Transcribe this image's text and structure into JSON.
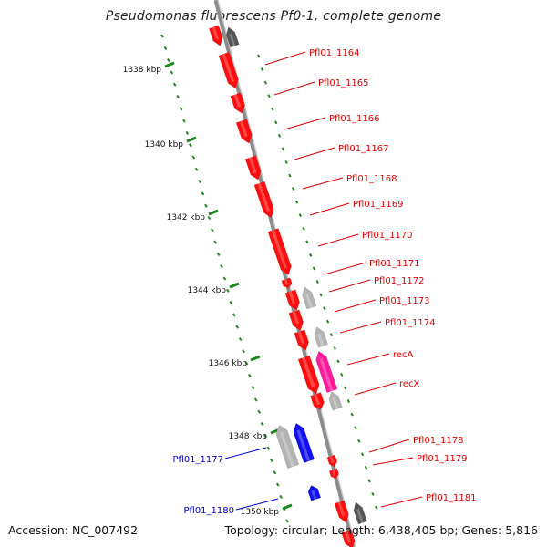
{
  "title": "Pseudomonas fluorescens Pf0-1, complete genome",
  "accession_text": "Accession: NC_007492",
  "summary_text": "Topology: circular; Length: 6,438,405 bp; Genes: 5,816",
  "colors": {
    "backbone": "#8c8c8c",
    "tick": "#1a8a1a",
    "gene_red": "#ff0d0d",
    "gene_gray": "#b3b3b3",
    "gene_dark": "#555555",
    "gene_pink": "#ff1a9c",
    "gene_blue": "#1010ee",
    "label_red": "#e00000",
    "label_blue": "#0000c8"
  },
  "ruler": [
    "1338 kbp",
    "1340 kbp",
    "1342 kbp",
    "1344 kbp",
    "1346 kbp",
    "1348 kbp",
    "1350 kbp"
  ],
  "labels": [
    {
      "text": "Pfl01_1164",
      "color": "red"
    },
    {
      "text": "Pfl01_1165",
      "color": "red"
    },
    {
      "text": "Pfl01_1166",
      "color": "red"
    },
    {
      "text": "Pfl01_1167",
      "color": "red"
    },
    {
      "text": "Pfl01_1168",
      "color": "red"
    },
    {
      "text": "Pfl01_1169",
      "color": "red"
    },
    {
      "text": "Pfl01_1170",
      "color": "red"
    },
    {
      "text": "Pfl01_1171",
      "color": "red"
    },
    {
      "text": "Pfl01_1172",
      "color": "red"
    },
    {
      "text": "Pfl01_1173",
      "color": "red"
    },
    {
      "text": "Pfl01_1174",
      "color": "red"
    },
    {
      "text": "recA",
      "color": "red"
    },
    {
      "text": "recX",
      "color": "red"
    },
    {
      "text": "Pfl01_1178",
      "color": "red"
    },
    {
      "text": "Pfl01_1179",
      "color": "red"
    },
    {
      "text": "Pfl01_1181",
      "color": "red"
    },
    {
      "text": "Pfl01_1177",
      "color": "blue"
    },
    {
      "text": "Pfl01_1180",
      "color": "blue"
    }
  ]
}
